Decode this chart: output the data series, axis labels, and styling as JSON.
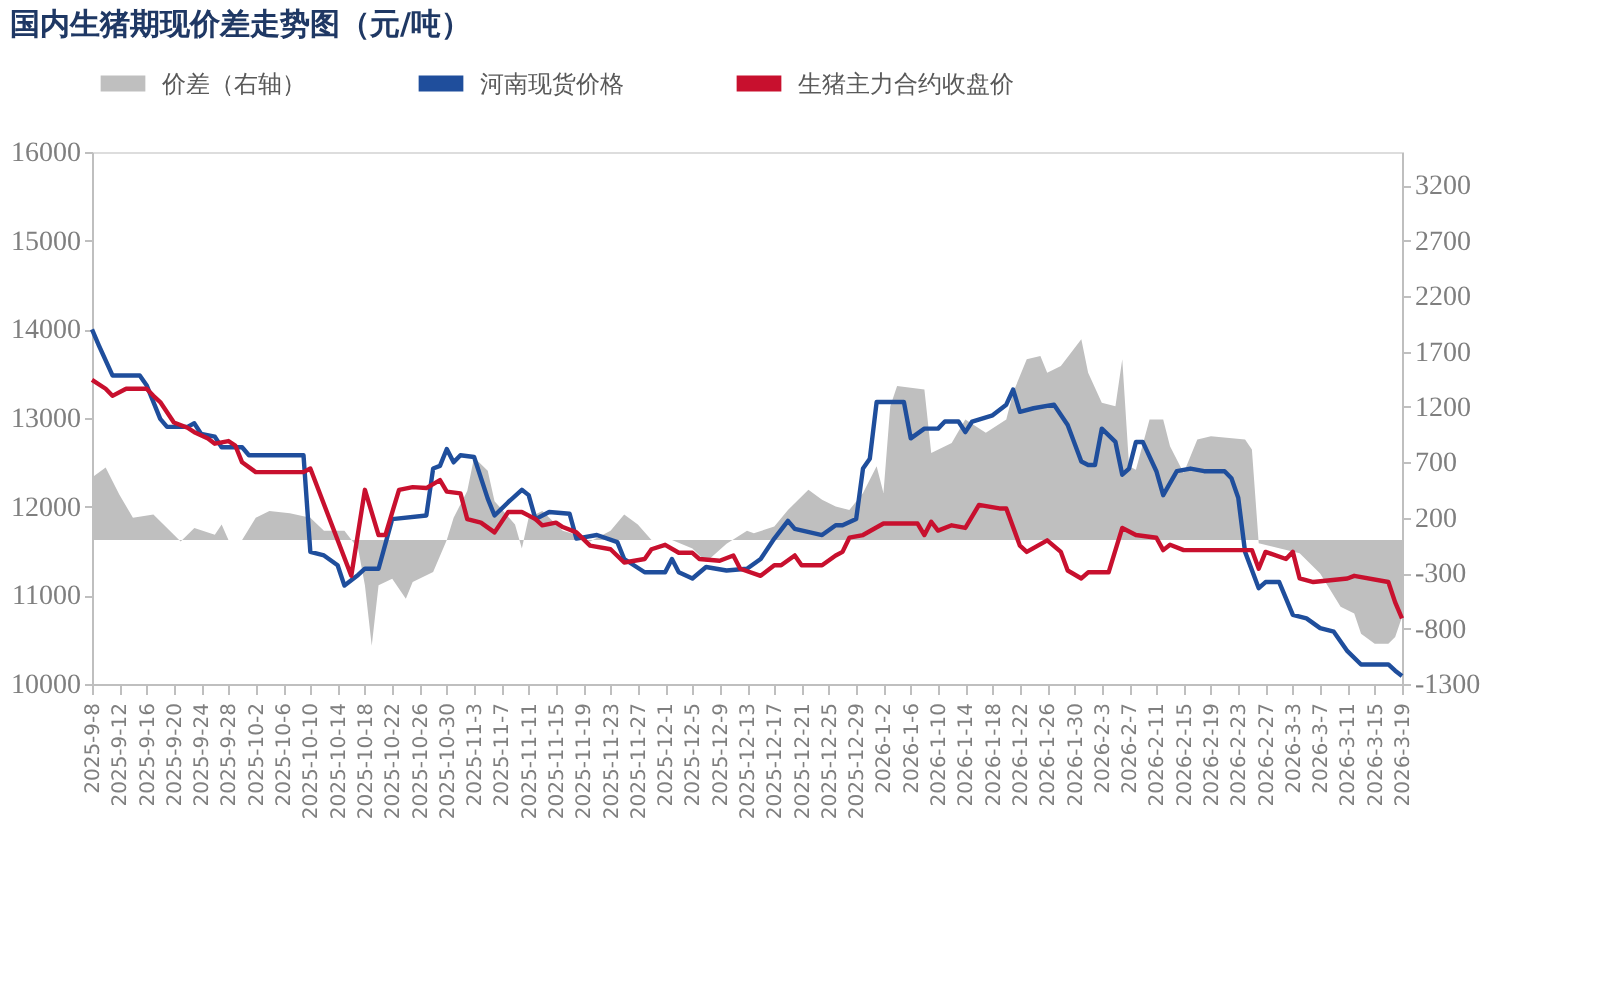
{
  "chart_data": {
    "type": "line",
    "title": "国内生猪期现价差走势图（元/吨）",
    "legend": "top",
    "grid": false,
    "marker": "none",
    "line_style": "solid",
    "xlim": [
      "2025-09-08",
      "2026-03-19"
    ],
    "xticks": [
      {
        "value": "2025-09-08",
        "label": "2025-9-8"
      },
      {
        "value": "2025-09-12",
        "label": "2025-9-12"
      },
      {
        "value": "2025-09-16",
        "label": "2025-9-16"
      },
      {
        "value": "2025-09-20",
        "label": "2025-9-20"
      },
      {
        "value": "2025-09-24",
        "label": "2025-9-24"
      },
      {
        "value": "2025-09-28",
        "label": "2025-9-28"
      },
      {
        "value": "2025-10-02",
        "label": "2025-10-2"
      },
      {
        "value": "2025-10-06",
        "label": "2025-10-6"
      },
      {
        "value": "2025-10-10",
        "label": "2025-10-10"
      },
      {
        "value": "2025-10-14",
        "label": "2025-10-14"
      },
      {
        "value": "2025-10-18",
        "label": "2025-10-18"
      },
      {
        "value": "2025-10-22",
        "label": "2025-10-22"
      },
      {
        "value": "2025-10-26",
        "label": "2025-10-26"
      },
      {
        "value": "2025-10-30",
        "label": "2025-10-30"
      },
      {
        "value": "2025-11-03",
        "label": "2025-11-3"
      },
      {
        "value": "2025-11-07",
        "label": "2025-11-7"
      },
      {
        "value": "2025-11-11",
        "label": "2025-11-11"
      },
      {
        "value": "2025-11-15",
        "label": "2025-11-15"
      },
      {
        "value": "2025-11-19",
        "label": "2025-11-19"
      },
      {
        "value": "2025-11-23",
        "label": "2025-11-23"
      },
      {
        "value": "2025-11-27",
        "label": "2025-11-27"
      },
      {
        "value": "2025-12-01",
        "label": "2025-12-1"
      },
      {
        "value": "2025-12-05",
        "label": "2025-12-5"
      },
      {
        "value": "2025-12-09",
        "label": "2025-12-9"
      },
      {
        "value": "2025-12-13",
        "label": "2025-12-13"
      },
      {
        "value": "2025-12-17",
        "label": "2025-12-17"
      },
      {
        "value": "2025-12-21",
        "label": "2025-12-21"
      },
      {
        "value": "2025-12-25",
        "label": "2025-12-25"
      },
      {
        "value": "2025-12-29",
        "label": "2025-12-29"
      },
      {
        "value": "2026-01-02",
        "label": "2026-1-2"
      },
      {
        "value": "2026-01-06",
        "label": "2026-1-6"
      },
      {
        "value": "2026-01-10",
        "label": "2026-1-10"
      },
      {
        "value": "2026-01-14",
        "label": "2026-1-14"
      },
      {
        "value": "2026-01-18",
        "label": "2026-1-18"
      },
      {
        "value": "2026-01-22",
        "label": "2026-1-22"
      },
      {
        "value": "2026-01-26",
        "label": "2026-1-26"
      },
      {
        "value": "2026-01-30",
        "label": "2026-1-30"
      },
      {
        "value": "2026-02-03",
        "label": "2026-2-3"
      },
      {
        "value": "2026-02-07",
        "label": "2026-2-7"
      },
      {
        "value": "2026-02-11",
        "label": "2026-2-11"
      },
      {
        "value": "2026-02-15",
        "label": "2026-2-15"
      },
      {
        "value": "2026-02-19",
        "label": "2026-2-19"
      },
      {
        "value": "2026-02-23",
        "label": "2026-2-23"
      },
      {
        "value": "2026-02-27",
        "label": "2026-2-27"
      },
      {
        "value": "2026-03-03",
        "label": "2026-3-3"
      },
      {
        "value": "2026-03-07",
        "label": "2026-3-7"
      },
      {
        "value": "2026-03-11",
        "label": "2026-3-11"
      },
      {
        "value": "2026-03-15",
        "label": "2026-3-15"
      },
      {
        "value": "2026-03-19",
        "label": "2026-3-19"
      }
    ],
    "ylim": [
      10000,
      16000
    ],
    "yticks": [
      10000,
      11000,
      12000,
      13000,
      14000,
      15000,
      16000
    ],
    "y2lim": [
      -1300,
      3500
    ],
    "y2ticks": [
      -1300,
      -800,
      -300,
      200,
      700,
      1200,
      1700,
      2200,
      2700,
      3200
    ],
    "series": [
      {
        "name": "价差（右轴）",
        "type": "area",
        "axis": "y2",
        "color": "#bfbfbf",
        "x": [
          "2025-09-08",
          "2025-09-10",
          "2025-09-12",
          "2025-09-14",
          "2025-09-17",
          "2025-09-20",
          "2025-09-21",
          "2025-09-23",
          "2025-09-26",
          "2025-09-27",
          "2025-09-28",
          "2025-09-30",
          "2025-10-02",
          "2025-10-04",
          "2025-10-07",
          "2025-10-10",
          "2025-10-12",
          "2025-10-15",
          "2025-10-17",
          "2025-10-18",
          "2025-10-19",
          "2025-10-20",
          "2025-10-22",
          "2025-10-24",
          "2025-10-25",
          "2025-10-28",
          "2025-10-30",
          "2025-10-31",
          "2025-11-02",
          "2025-11-03",
          "2025-11-05",
          "2025-11-06",
          "2025-11-09",
          "2025-11-10",
          "2025-11-11",
          "2025-11-13",
          "2025-11-16",
          "2025-11-18",
          "2025-11-20",
          "2025-11-23",
          "2025-11-25",
          "2025-11-27",
          "2025-11-29",
          "2025-12-02",
          "2025-12-05",
          "2025-12-07",
          "2025-12-10",
          "2025-12-13",
          "2025-12-14",
          "2025-12-17",
          "2025-12-19",
          "2025-12-22",
          "2025-12-24",
          "2025-12-26",
          "2025-12-28",
          "2025-12-30",
          "2026-01-01",
          "2026-01-02",
          "2026-01-03",
          "2026-01-04",
          "2026-01-08",
          "2026-01-09",
          "2026-01-12",
          "2026-01-14",
          "2026-01-17",
          "2026-01-20",
          "2026-01-21",
          "2026-01-23",
          "2026-01-25",
          "2026-01-26",
          "2026-01-28",
          "2026-01-31",
          "2026-02-01",
          "2026-02-03",
          "2026-02-05",
          "2026-02-06",
          "2026-02-07",
          "2026-02-08",
          "2026-02-10",
          "2026-02-12",
          "2026-02-13",
          "2026-02-15",
          "2026-02-17",
          "2026-02-19",
          "2026-02-24",
          "2026-02-25",
          "2026-02-26",
          "2026-03-04",
          "2026-03-07",
          "2026-03-10",
          "2026-03-12",
          "2026-03-13",
          "2026-03-15",
          "2026-03-17",
          "2026-03-18",
          "2026-03-19"
        ],
        "values": [
          563,
          654,
          410,
          200,
          229,
          47,
          -14,
          108,
          47,
          138,
          0,
          0,
          200,
          260,
          241,
          200,
          83,
          83,
          -77,
          -410,
          -955,
          -410,
          -350,
          -530,
          -380,
          -290,
          0,
          200,
          441,
          744,
          623,
          350,
          138,
          -77,
          200,
          260,
          83,
          47,
          -14,
          83,
          229,
          138,
          0,
          0,
          -77,
          -200,
          -35,
          83,
          60,
          120,
          271,
          453,
          362,
          301,
          271,
          423,
          664,
          423,
          1207,
          1388,
          1358,
          785,
          875,
          1086,
          966,
          1086,
          1328,
          1630,
          1660,
          1509,
          1570,
          1811,
          1509,
          1237,
          1207,
          1630,
          664,
          634,
          1086,
          1086,
          845,
          603,
          905,
          936,
          905,
          815,
          -30,
          -121,
          -302,
          -604,
          -665,
          -846,
          -936,
          -936,
          -876,
          -695
        ]
      },
      {
        "name": "河南现货价格",
        "type": "line",
        "color": "#1f4e9c",
        "x": [
          "2025-09-08",
          "2025-09-09",
          "2025-09-11",
          "2025-09-15",
          "2025-09-16",
          "2025-09-18",
          "2025-09-19",
          "2025-09-22",
          "2025-09-23",
          "2025-09-24",
          "2025-09-26",
          "2025-09-27",
          "2025-09-30",
          "2025-10-01",
          "2025-10-09",
          "2025-10-10",
          "2025-10-12",
          "2025-10-14",
          "2025-10-15",
          "2025-10-17",
          "2025-10-18",
          "2025-10-20",
          "2025-10-22",
          "2025-10-27",
          "2025-10-28",
          "2025-10-29",
          "2025-10-30",
          "2025-10-31",
          "2025-11-01",
          "2025-11-03",
          "2025-11-05",
          "2025-11-06",
          "2025-11-08",
          "2025-11-10",
          "2025-11-11",
          "2025-11-12",
          "2025-11-14",
          "2025-11-17",
          "2025-11-18",
          "2025-11-21",
          "2025-11-24",
          "2025-11-25",
          "2025-11-28",
          "2025-12-01",
          "2025-12-02",
          "2025-12-03",
          "2025-12-05",
          "2025-12-07",
          "2025-12-10",
          "2025-12-13",
          "2025-12-15",
          "2025-12-17",
          "2025-12-19",
          "2025-12-20",
          "2025-12-24",
          "2025-12-26",
          "2025-12-27",
          "2025-12-29",
          "2025-12-30",
          "2025-12-31",
          "2026-01-01",
          "2026-01-05",
          "2026-01-06",
          "2026-01-08",
          "2026-01-10",
          "2026-01-11",
          "2026-01-13",
          "2026-01-14",
          "2026-01-15",
          "2026-01-18",
          "2026-01-20",
          "2026-01-21",
          "2026-01-22",
          "2026-01-24",
          "2026-01-27",
          "2026-01-29",
          "2026-01-31",
          "2026-02-01",
          "2026-02-02",
          "2026-02-03",
          "2026-02-05",
          "2026-02-06",
          "2026-02-07",
          "2026-02-08",
          "2026-02-09",
          "2026-02-11",
          "2026-02-12",
          "2026-02-14",
          "2026-02-16",
          "2026-02-18",
          "2026-02-21",
          "2026-02-22",
          "2026-02-23",
          "2026-02-24",
          "2026-02-26",
          "2026-02-27",
          "2026-03-01",
          "2026-03-03",
          "2026-03-05",
          "2026-03-07",
          "2026-03-09",
          "2026-03-11",
          "2026-03-13",
          "2026-03-17",
          "2026-03-18",
          "2026-03-19"
        ],
        "values": [
          14000,
          13820,
          13480,
          13480,
          13370,
          12990,
          12900,
          12900,
          12940,
          12820,
          12790,
          12670,
          12670,
          12580,
          12580,
          11490,
          11450,
          11340,
          11110,
          11230,
          11300,
          11300,
          11860,
          11900,
          12430,
          12460,
          12650,
          12500,
          12580,
          12560,
          12090,
          11900,
          12050,
          12190,
          12130,
          11860,
          11940,
          11920,
          11640,
          11680,
          11600,
          11410,
          11260,
          11260,
          11410,
          11260,
          11190,
          11320,
          11280,
          11300,
          11410,
          11640,
          11840,
          11750,
          11680,
          11790,
          11790,
          11860,
          12430,
          12540,
          13180,
          13180,
          12770,
          12880,
          12880,
          12960,
          12960,
          12840,
          12960,
          13030,
          13150,
          13320,
          13070,
          13110,
          13150,
          12920,
          12510,
          12470,
          12470,
          12880,
          12730,
          12360,
          12430,
          12730,
          12730,
          12400,
          12130,
          12400,
          12430,
          12400,
          12400,
          12320,
          12100,
          11490,
          11080,
          11150,
          11150,
          10780,
          10740,
          10630,
          10590,
          10370,
          10220,
          10220,
          10150,
          10090
        ]
      },
      {
        "name": "生猪主力合约收盘价",
        "type": "line",
        "color": "#c8102e",
        "x": [
          "2025-09-08",
          "2025-09-10",
          "2025-09-11",
          "2025-09-13",
          "2025-09-16",
          "2025-09-17",
          "2025-09-18",
          "2025-09-20",
          "2025-09-22",
          "2025-09-23",
          "2025-09-25",
          "2025-09-26",
          "2025-09-28",
          "2025-09-29",
          "2025-09-30",
          "2025-10-02",
          "2025-10-09",
          "2025-10-10",
          "2025-10-16",
          "2025-10-18",
          "2025-10-20",
          "2025-10-21",
          "2025-10-23",
          "2025-10-25",
          "2025-10-27",
          "2025-10-29",
          "2025-10-30",
          "2025-11-01",
          "2025-11-02",
          "2025-11-04",
          "2025-11-06",
          "2025-11-08",
          "2025-11-10",
          "2025-11-12",
          "2025-11-13",
          "2025-11-15",
          "2025-11-16",
          "2025-11-18",
          "2025-11-20",
          "2025-11-23",
          "2025-11-25",
          "2025-11-28",
          "2025-11-29",
          "2025-12-01",
          "2025-12-03",
          "2025-12-05",
          "2025-12-06",
          "2025-12-09",
          "2025-12-11",
          "2025-12-12",
          "2025-12-15",
          "2025-12-17",
          "2025-12-18",
          "2025-12-20",
          "2025-12-21",
          "2025-12-24",
          "2025-12-26",
          "2025-12-27",
          "2025-12-28",
          "2025-12-30",
          "2026-01-02",
          "2026-01-07",
          "2026-01-08",
          "2026-01-09",
          "2026-01-10",
          "2026-01-12",
          "2026-01-14",
          "2026-01-16",
          "2026-01-19",
          "2026-01-20",
          "2026-01-22",
          "2026-01-23",
          "2026-01-26",
          "2026-01-28",
          "2026-01-29",
          "2026-01-31",
          "2026-02-01",
          "2026-02-04",
          "2026-02-06",
          "2026-02-08",
          "2026-02-11",
          "2026-02-12",
          "2026-02-13",
          "2026-02-15",
          "2026-02-25",
          "2026-02-26",
          "2026-02-27",
          "2026-03-02",
          "2026-03-03",
          "2026-03-04",
          "2026-03-06",
          "2026-03-11",
          "2026-03-12",
          "2026-03-17",
          "2026-03-18",
          "2026-03-19"
        ],
        "values": [
          13430,
          13330,
          13250,
          13330,
          13330,
          13250,
          13180,
          12950,
          12890,
          12840,
          12770,
          12710,
          12740,
          12690,
          12500,
          12390,
          12390,
          12430,
          11220,
          12190,
          11680,
          11680,
          12190,
          12220,
          12210,
          12300,
          12170,
          12150,
          11860,
          11820,
          11710,
          11940,
          11940,
          11860,
          11790,
          11820,
          11770,
          11710,
          11560,
          11520,
          11370,
          11410,
          11520,
          11570,
          11480,
          11480,
          11410,
          11390,
          11450,
          11300,
          11220,
          11340,
          11340,
          11450,
          11340,
          11340,
          11450,
          11490,
          11650,
          11680,
          11810,
          11810,
          11680,
          11830,
          11730,
          11790,
          11760,
          12020,
          11980,
          11980,
          11560,
          11490,
          11620,
          11490,
          11280,
          11190,
          11260,
          11260,
          11760,
          11680,
          11650,
          11510,
          11570,
          11510,
          11510,
          11300,
          11490,
          11410,
          11490,
          11190,
          11150,
          11190,
          11220,
          11150,
          10920,
          10740
        ]
      }
    ]
  }
}
